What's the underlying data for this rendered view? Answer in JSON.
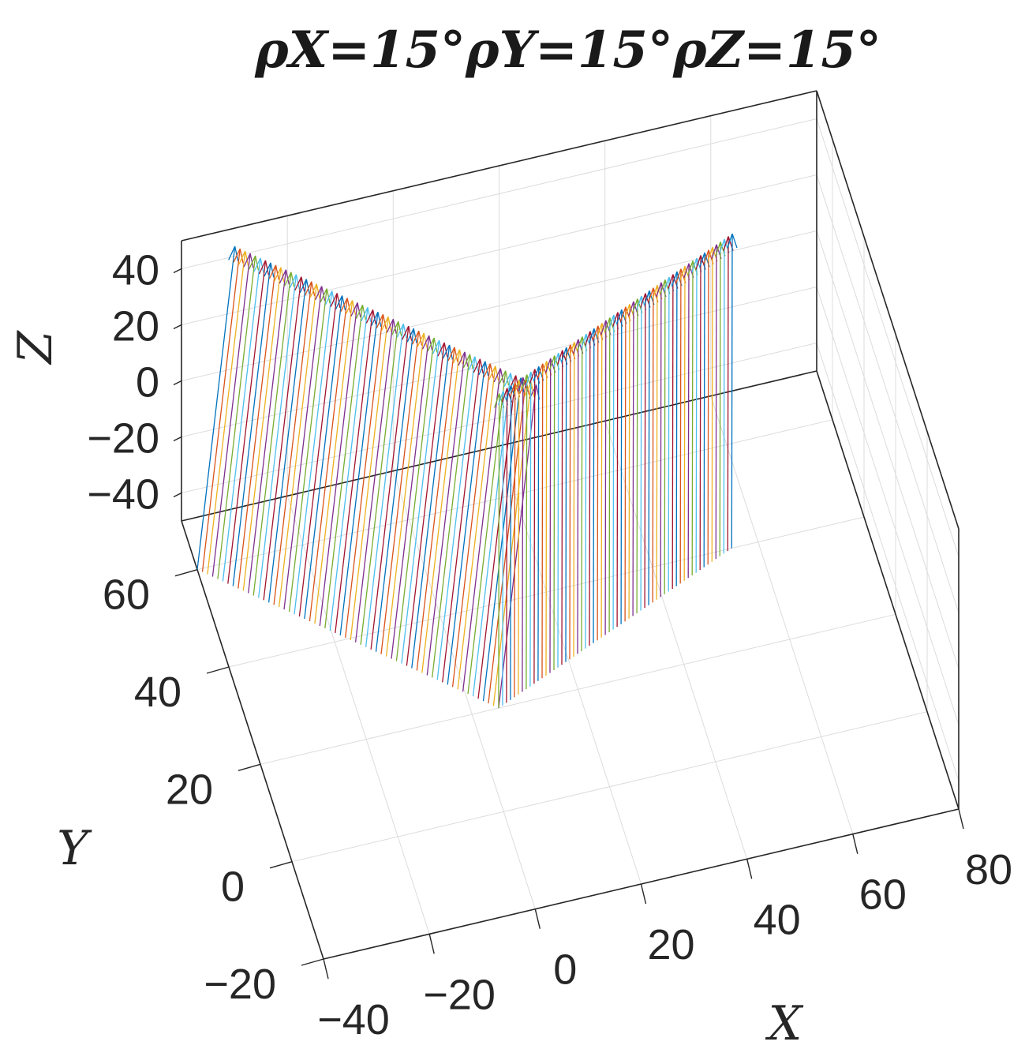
{
  "chart_data": {
    "type": "quiver3d",
    "title": "ρX=15°ρY=15°ρZ=15°",
    "xlabel": "X",
    "ylabel": "Y",
    "zlabel": "Z",
    "xlim": [
      -40,
      80
    ],
    "ylim": [
      -20,
      70
    ],
    "zlim": [
      -50,
      50
    ],
    "xticks": [
      "−40",
      "−20",
      "0",
      "20",
      "40",
      "60",
      "80"
    ],
    "yticks": [
      "−20",
      "0",
      "20",
      "40",
      "60"
    ],
    "zticks": [
      "40",
      "20",
      "0",
      "−20",
      "−40"
    ],
    "grid": true,
    "box": true,
    "n_vectors_per_arm": 60,
    "series_colors": [
      "#0072BD",
      "#D95319",
      "#EDB120",
      "#7E2F8E",
      "#77AC30",
      "#4DBEEE",
      "#A2142F"
    ],
    "arms": [
      {
        "name": "",
        "base_start": [
          -40,
          60,
          -50
        ],
        "base_end": [
          5,
          20,
          -50
        ],
        "vector": [
          25,
          60,
          0
        ]
      },
      {
        "name": "",
        "base_start": [
          5,
          20,
          -50
        ],
        "base_end": [
          55,
          40,
          -50
        ],
        "vector": [
          18,
          60,
          0
        ]
      }
    ]
  }
}
